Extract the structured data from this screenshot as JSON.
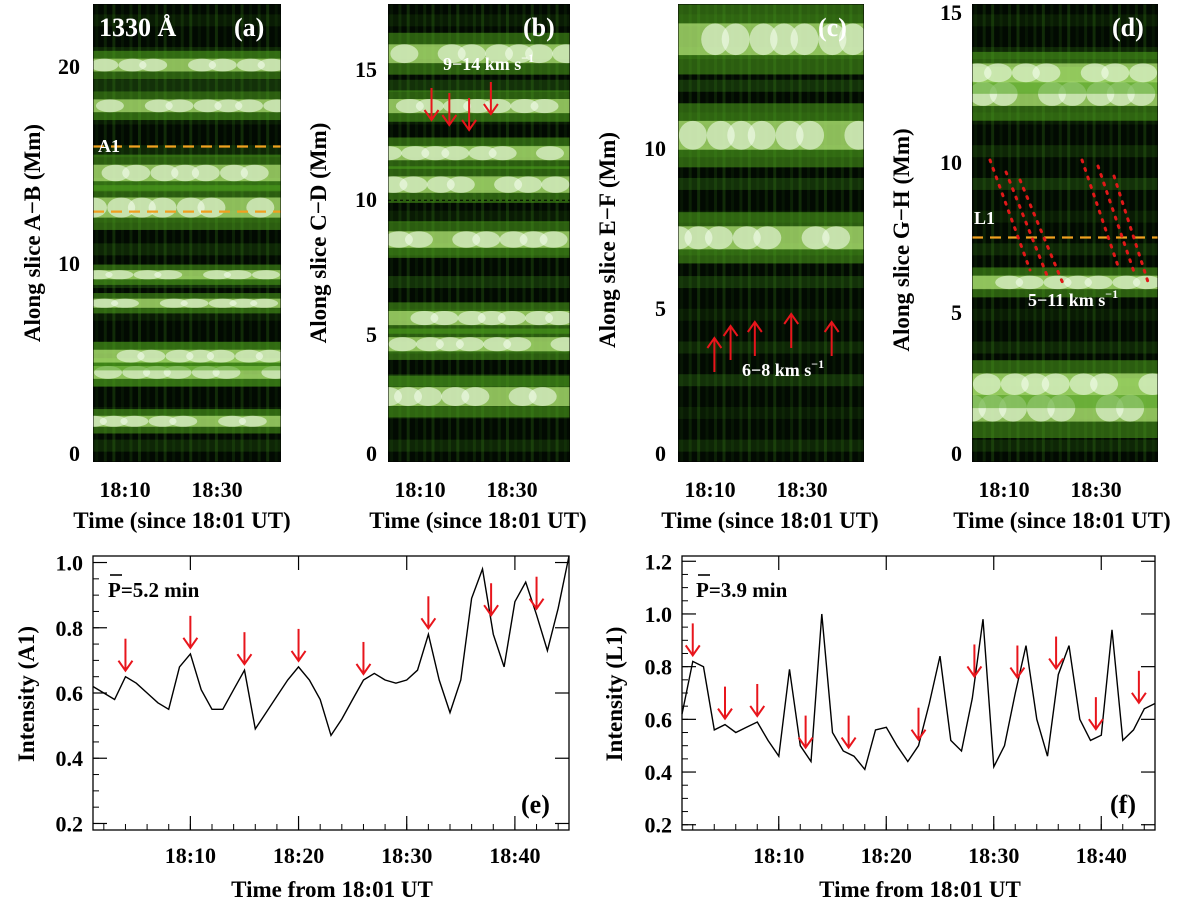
{
  "figure": {
    "wavelength_label": "1330 Å",
    "panel_a_label": "(a)",
    "panel_b_label": "(b)",
    "panel_c_label": "(c)",
    "panel_d_label": "(d)",
    "panel_e_label": "(e)",
    "panel_f_label": "(f)",
    "time_axis_label": "Time (since 18:01 UT)",
    "time_ticks": [
      "18:10",
      "18:30"
    ],
    "ylabel_a": "Along slice A−B (Mm)",
    "ylabel_b": "Along slice C−D (Mm)",
    "ylabel_c": "Along slice E−F (Mm)",
    "ylabel_d": "Along slice G−H (Mm)",
    "yticks_a": [
      "0",
      "10",
      "20"
    ],
    "yticks_b": [
      "0",
      "5",
      "10",
      "15"
    ],
    "yticks_c": [
      "0",
      "5",
      "10"
    ],
    "yticks_d": [
      "0",
      "5",
      "10",
      "15"
    ],
    "slit_a_label": "A1",
    "slit_d_label": "L1",
    "speed_b_value": "9−14 km s",
    "speed_c_value": "6−8 km s",
    "speed_d_value": "5−11 km s",
    "speed_sup": "−1",
    "period_e_label": "P=5.2  min",
    "period_f_label": "P=3.9  min",
    "xlabel_ef": "Time from 18:01 UT",
    "ylabel_e": "Intensity (A1)",
    "ylabel_f": "Intensity (L1)",
    "colors": {
      "trace": "#000000",
      "arrow": "#e8151c",
      "slit_line": "#f0a020",
      "dots": "#e01818",
      "map_dark": "#020a02",
      "map_bright": "#f6fff0"
    }
  },
  "chart_data": [
    {
      "type": "heatmap",
      "panel": "a",
      "title": "1330 Å",
      "xlabel": "Time (since 18:01 UT)",
      "ylabel": "Along slice A−B (Mm)",
      "xlim_min": [
        0,
        46
      ],
      "ylim": [
        0,
        22.5
      ],
      "xticks": [
        "18:10",
        "18:30"
      ],
      "yticks": [
        0,
        10,
        20
      ],
      "slit_rows_mm": [
        15.5,
        12.3
      ],
      "slit_label": "A1",
      "bright_bands_mm": [
        [
          2,
          0.6
        ],
        [
          4.4,
          0.7
        ],
        [
          5.2,
          0.7
        ],
        [
          7.8,
          0.5
        ],
        [
          9.2,
          0.5
        ],
        [
          12.5,
          1.1
        ],
        [
          14.2,
          0.9
        ],
        [
          17.5,
          0.7
        ],
        [
          19.5,
          0.7
        ]
      ]
    },
    {
      "type": "heatmap",
      "panel": "b",
      "xlabel": "Time (since 18:01 UT)",
      "ylabel": "Along slice C−D (Mm)",
      "xlim_min": [
        0,
        46
      ],
      "ylim": [
        0,
        17.5
      ],
      "xticks": [
        "18:10",
        "18:30"
      ],
      "yticks": [
        0,
        5,
        10,
        15
      ],
      "speed": "9−14 km s−1",
      "arrow_times_min": [
        11,
        15.5,
        20.5,
        26
      ],
      "bright_bands_mm": [
        [
          2.5,
          0.8
        ],
        [
          4.5,
          0.6
        ],
        [
          5.5,
          0.6
        ],
        [
          8.5,
          0.7
        ],
        [
          10.6,
          0.7
        ],
        [
          11.8,
          0.6
        ],
        [
          13.6,
          0.6
        ],
        [
          15.6,
          0.8
        ]
      ]
    },
    {
      "type": "heatmap",
      "panel": "c",
      "xlabel": "Time (since 18:01 UT)",
      "ylabel": "Along slice E−F (Mm)",
      "xlim_min": [
        0,
        46
      ],
      "ylim": [
        0,
        14.3
      ],
      "xticks": [
        "18:10",
        "18:30"
      ],
      "yticks": [
        0,
        5,
        10
      ],
      "speed": "6−8 km s−1",
      "arrow_times_min": [
        9,
        13,
        19,
        28,
        38
      ],
      "bright_bands_mm": [
        [
          7.0,
          0.8
        ],
        [
          10.2,
          1.0
        ],
        [
          13.2,
          1.1
        ]
      ]
    },
    {
      "type": "heatmap",
      "panel": "d",
      "xlabel": "Time (since 18:01 UT)",
      "ylabel": "Along slice G−H (Mm)",
      "xlim_min": [
        0,
        46
      ],
      "ylim": [
        0,
        15.3
      ],
      "xticks": [
        "18:10",
        "18:30"
      ],
      "yticks": [
        0,
        5,
        10,
        15
      ],
      "slit_rows_mm": [
        7.5
      ],
      "slit_label": "L1",
      "speed": "5−11 km s−1",
      "bright_bands_mm": [
        [
          1.8,
          1.0
        ],
        [
          2.6,
          0.8
        ],
        [
          6.0,
          0.5
        ],
        [
          12.3,
          0.9
        ],
        [
          13.0,
          0.7
        ]
      ]
    },
    {
      "type": "line",
      "panel": "e",
      "title": "P=5.2  min",
      "xlabel": "Time from 18:01 UT",
      "ylabel": "Intensity (A1)",
      "xlim": [
        0,
        44
      ],
      "ylim": [
        0.18,
        1.02
      ],
      "xticks": [
        {
          "value": 9,
          "label": "18:10"
        },
        {
          "value": 19,
          "label": "18:20"
        },
        {
          "value": 29,
          "label": "18:30"
        },
        {
          "value": 39,
          "label": "18:40"
        }
      ],
      "yticks": [
        0.2,
        0.4,
        0.6,
        0.8,
        1.0
      ],
      "x": [
        0,
        1,
        2,
        3,
        4,
        5,
        6,
        7,
        8,
        9,
        10,
        11,
        12,
        13,
        14,
        15,
        16,
        17,
        18,
        19,
        20,
        21,
        22,
        23,
        24,
        25,
        26,
        27,
        28,
        29,
        30,
        31,
        32,
        33,
        34,
        35,
        36,
        37,
        38,
        39,
        40,
        41,
        42,
        43,
        44
      ],
      "values": [
        0.62,
        0.6,
        0.58,
        0.65,
        0.63,
        0.6,
        0.57,
        0.55,
        0.68,
        0.72,
        0.61,
        0.55,
        0.55,
        0.61,
        0.67,
        0.49,
        0.54,
        0.59,
        0.64,
        0.68,
        0.64,
        0.58,
        0.47,
        0.52,
        0.58,
        0.64,
        0.66,
        0.64,
        0.63,
        0.64,
        0.67,
        0.78,
        0.64,
        0.54,
        0.64,
        0.89,
        0.98,
        0.78,
        0.68,
        0.88,
        0.94,
        0.84,
        0.73,
        0.86,
        1.02
      ],
      "arrow_x": [
        3,
        9,
        14,
        19,
        25,
        31,
        36.8,
        41
      ]
    },
    {
      "type": "line",
      "panel": "f",
      "title": "P=3.9  min",
      "xlabel": "Time from 18:01 UT",
      "ylabel": "Intensity (L1)",
      "xlim": [
        0,
        44
      ],
      "ylim": [
        0.18,
        1.22
      ],
      "xticks": [
        {
          "value": 9,
          "label": "18:10"
        },
        {
          "value": 19,
          "label": "18:20"
        },
        {
          "value": 29,
          "label": "18:30"
        },
        {
          "value": 39,
          "label": "18:40"
        }
      ],
      "yticks": [
        0.2,
        0.4,
        0.6,
        0.8,
        1.0,
        1.2
      ],
      "x": [
        0,
        1,
        2,
        3,
        4,
        5,
        6,
        7,
        8,
        9,
        10,
        11,
        12,
        13,
        14,
        15,
        16,
        17,
        18,
        19,
        20,
        21,
        22,
        23,
        24,
        25,
        26,
        27,
        28,
        29,
        30,
        31,
        32,
        33,
        34,
        35,
        36,
        37,
        38,
        39,
        40,
        41,
        42,
        43,
        44
      ],
      "values": [
        0.62,
        0.82,
        0.8,
        0.56,
        0.58,
        0.55,
        0.57,
        0.59,
        0.52,
        0.46,
        0.79,
        0.5,
        0.44,
        1.0,
        0.55,
        0.48,
        0.46,
        0.41,
        0.56,
        0.57,
        0.5,
        0.44,
        0.5,
        0.66,
        0.84,
        0.52,
        0.48,
        0.68,
        0.98,
        0.42,
        0.5,
        0.7,
        0.88,
        0.6,
        0.46,
        0.77,
        0.88,
        0.6,
        0.52,
        0.54,
        0.94,
        0.52,
        0.56,
        0.64,
        0.66
      ],
      "arrow_x": [
        1,
        4,
        7,
        11.5,
        15.5,
        22,
        27.2,
        31.2,
        34.8,
        38.5,
        42.5
      ]
    }
  ]
}
